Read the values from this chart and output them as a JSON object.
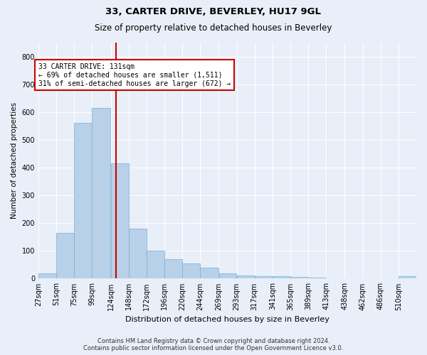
{
  "title": "33, CARTER DRIVE, BEVERLEY, HU17 9GL",
  "subtitle": "Size of property relative to detached houses in Beverley",
  "xlabel": "Distribution of detached houses by size in Beverley",
  "ylabel": "Number of detached properties",
  "bar_color": "#b8d0e8",
  "bar_edge_color": "#7bafd4",
  "background_color": "#e8eff8",
  "grid_color": "#ffffff",
  "vline_color": "#cc0000",
  "vline_x": 131,
  "bin_edges": [
    27,
    51,
    75,
    99,
    124,
    148,
    172,
    196,
    220,
    244,
    269,
    293,
    317,
    341,
    365,
    389,
    413,
    438,
    462,
    486,
    510,
    534
  ],
  "tick_labels": [
    "27sqm",
    "51sqm",
    "75sqm",
    "99sqm",
    "124sqm",
    "148sqm",
    "172sqm",
    "196sqm",
    "220sqm",
    "244sqm",
    "269sqm",
    "293sqm",
    "317sqm",
    "341sqm",
    "365sqm",
    "389sqm",
    "413sqm",
    "438sqm",
    "462sqm",
    "486sqm",
    "510sqm"
  ],
  "values": [
    20,
    165,
    560,
    615,
    415,
    180,
    100,
    70,
    55,
    40,
    20,
    12,
    10,
    8,
    5,
    3,
    0,
    0,
    0,
    0,
    10
  ],
  "ylim": [
    0,
    850
  ],
  "yticks": [
    0,
    100,
    200,
    300,
    400,
    500,
    600,
    700,
    800
  ],
  "annotation_text": "33 CARTER DRIVE: 131sqm\n← 69% of detached houses are smaller (1,511)\n31% of semi-detached houses are larger (672) →",
  "annotation_box_color": "#ffffff",
  "annotation_box_edge_color": "#cc0000",
  "footnote": "Contains HM Land Registry data © Crown copyright and database right 2024.\nContains public sector information licensed under the Open Government Licence v3.0.",
  "title_fontsize": 9.5,
  "subtitle_fontsize": 8.5,
  "xlabel_fontsize": 8,
  "ylabel_fontsize": 7.5,
  "tick_fontsize": 7,
  "annotation_fontsize": 7,
  "footnote_fontsize": 6
}
